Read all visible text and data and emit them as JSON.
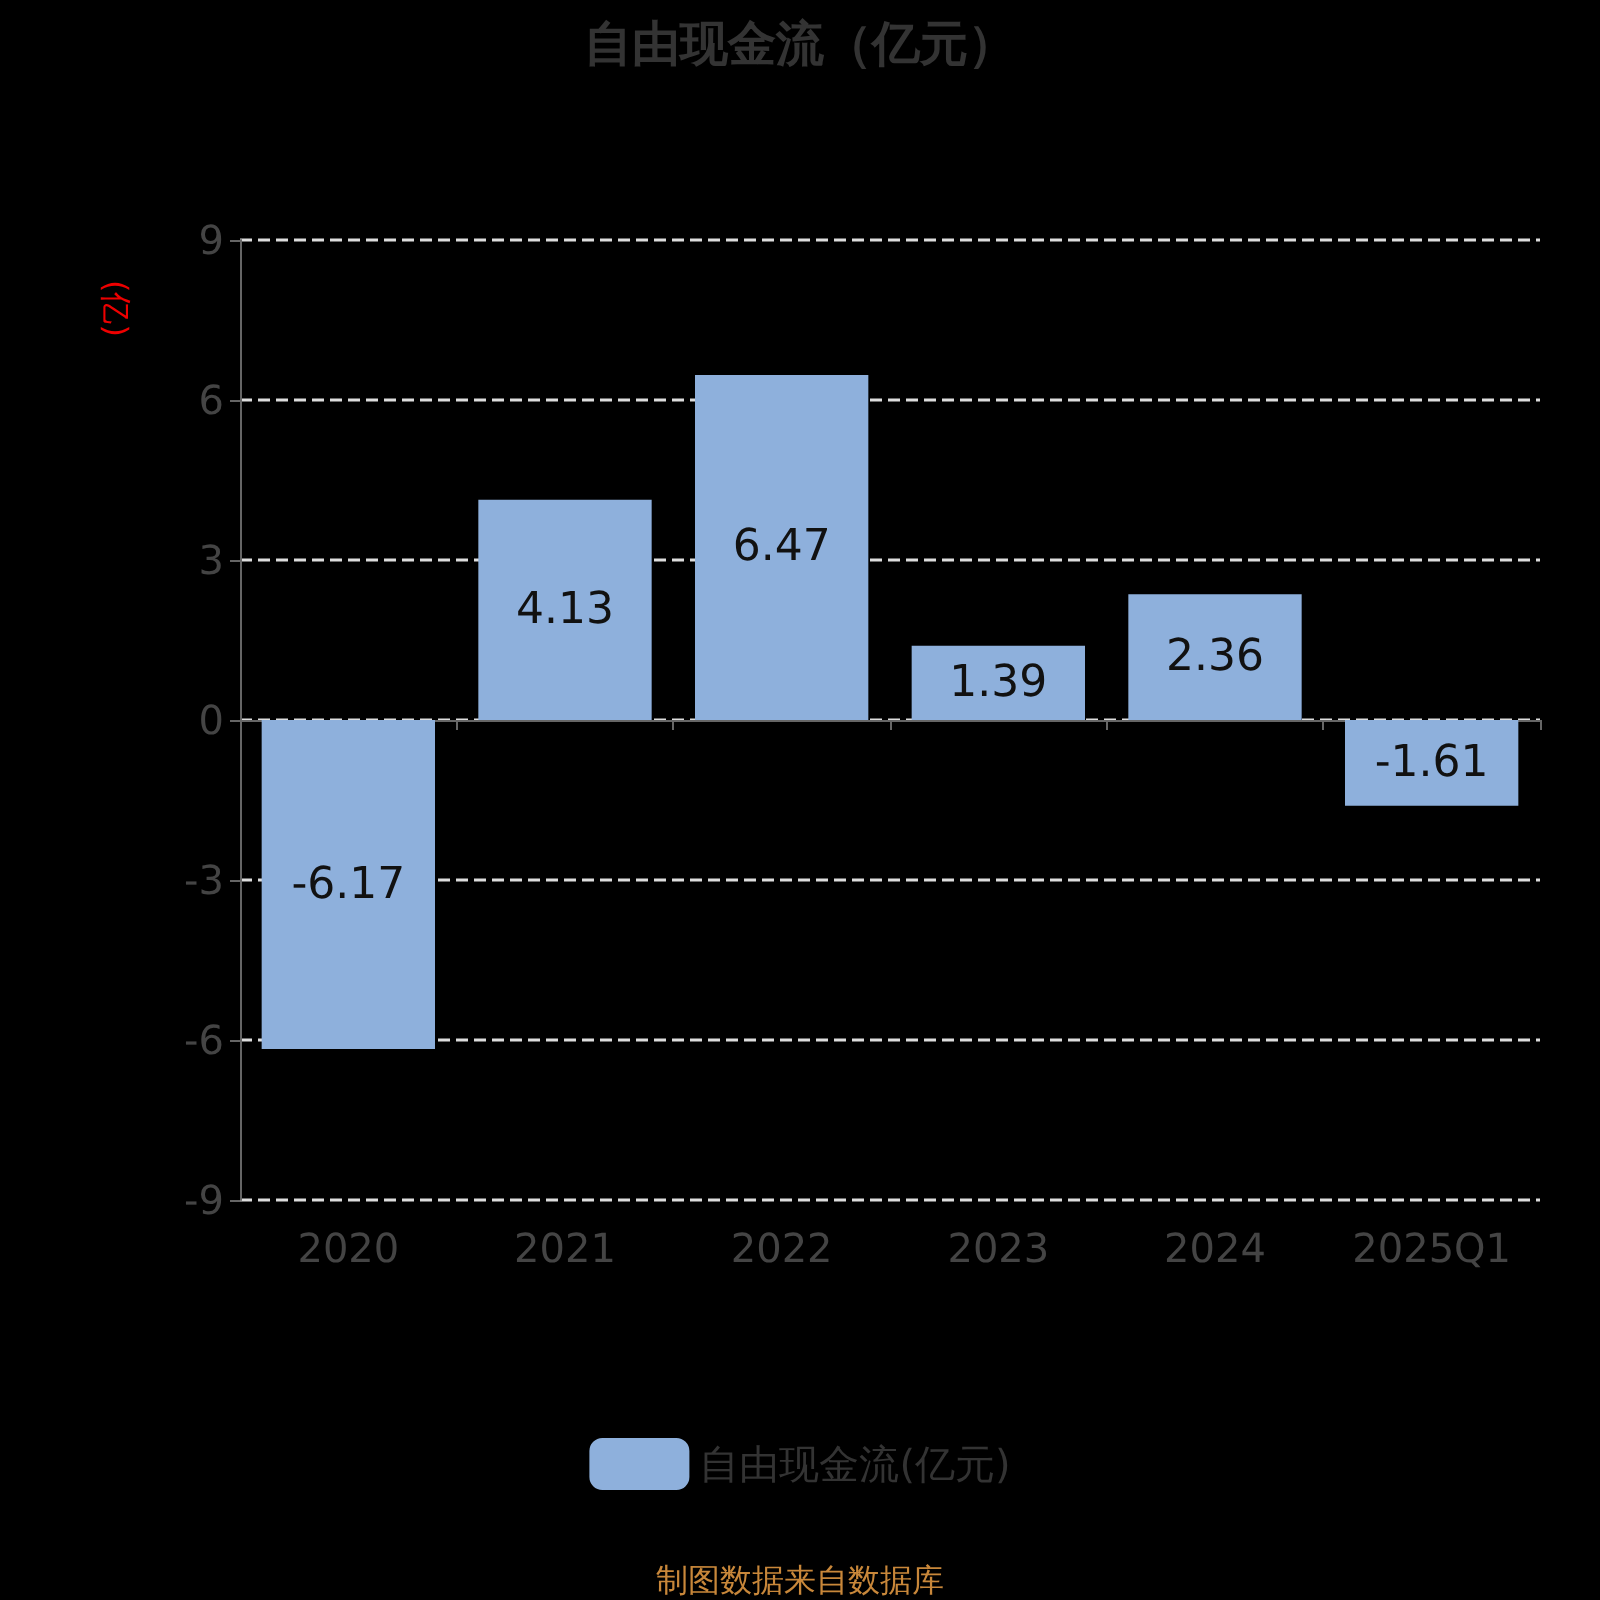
{
  "chart_data": {
    "type": "bar",
    "title": "自由现金流（亿元）",
    "ylabel": "(亿)",
    "categories": [
      "2020",
      "2021",
      "2022",
      "2023",
      "2024",
      "2025Q1"
    ],
    "series": [
      {
        "name": "自由现金流(亿元)",
        "color": "#8eb0dc",
        "values": [
          -6.17,
          4.13,
          6.47,
          1.39,
          2.36,
          -1.61
        ]
      }
    ],
    "ylim": [
      -9,
      9
    ],
    "yticks": [
      -9,
      -6,
      -3,
      0,
      3,
      6,
      9
    ],
    "grid": "y",
    "legend": "bottom",
    "data_labels": true,
    "annotations": [
      "制图数据来自数据库"
    ]
  }
}
